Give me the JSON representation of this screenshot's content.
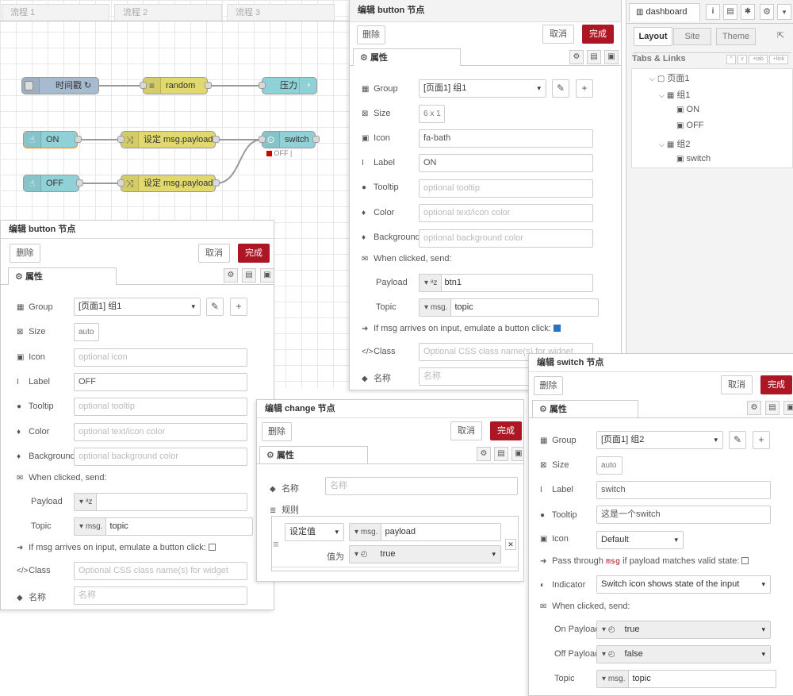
{
  "flow_tabs": [
    "流程 1",
    "流程 2",
    "流程 3"
  ],
  "nodes": {
    "inject": "时间戳 ↻",
    "random": "random",
    "gauge": "压力",
    "on": "ON",
    "off": "OFF",
    "change1": "设定 msg.payload",
    "change2": "设定 msg.payload",
    "switch": "switch",
    "switch_status": "OFF |"
  },
  "colors": {
    "primary": "#ad1625",
    "dashboard_node": "#8fd1d6",
    "function_node": "#e2d96e",
    "change_node": "#e2d96e"
  },
  "common": {
    "delete": "删除",
    "cancel": "取消",
    "done": "完成",
    "properties": "属性"
  },
  "btn_on_editor": {
    "title": "编辑 button 节点",
    "group_label": "Group",
    "group": "[页面1] 组1",
    "size_label": "Size",
    "size": "6 x 1",
    "icon_label": "Icon",
    "icon": "fa-bath",
    "label_label": "Label",
    "label": "ON",
    "tooltip_label": "Tooltip",
    "tooltip_ph": "optional tooltip",
    "color_label": "Color",
    "color_ph": "optional text/icon color",
    "bg_label": "Background",
    "bg_ph": "optional background color",
    "clicked_label": "When clicked, send:",
    "payload_label": "Payload",
    "payload_type": "ᵃz",
    "payload": "btn1",
    "topic_label": "Topic",
    "topic_type": "msg.",
    "topic": "topic",
    "emulate_label": "If msg arrives on input, emulate a button click:",
    "class_label": "Class",
    "class_ph": "Optional CSS class name(s) for widget",
    "name_label": "名称",
    "name_ph": "名称"
  },
  "btn_off_editor": {
    "title": "编辑 button 节点",
    "group_label": "Group",
    "group": "[页面1] 组1",
    "size_label": "Size",
    "size": "auto",
    "icon_label": "Icon",
    "icon_ph": "optional icon",
    "label_label": "Label",
    "label": "OFF",
    "tooltip_label": "Tooltip",
    "tooltip_ph": "optional tooltip",
    "color_label": "Color",
    "color_ph": "optional text/icon color",
    "bg_label": "Background",
    "bg_ph": "optional background color",
    "clicked_label": "When clicked, send:",
    "payload_label": "Payload",
    "payload_type": "ᵃz",
    "payload": "",
    "topic_label": "Topic",
    "topic_type": "msg.",
    "topic": "topic",
    "emulate_label": "If msg arrives on input, emulate a button click:",
    "class_label": "Class",
    "class_ph": "Optional CSS class name(s) for widget",
    "name_label": "名称",
    "name_ph": "名称"
  },
  "change_editor": {
    "title": "编辑 change 节点",
    "name_label": "名称",
    "name_ph": "名称",
    "rules_label": "规则",
    "action": "设定值",
    "target_type": "msg.",
    "target": "payload",
    "to_label": "值为",
    "to_type": "◴",
    "to_value": "true"
  },
  "switch_editor": {
    "title": "编辑 switch 节点",
    "group_label": "Group",
    "group": "[页面1] 组2",
    "size_label": "Size",
    "size": "auto",
    "label_label": "Label",
    "label": "switch",
    "tooltip_label": "Tooltip",
    "tooltip": "这是一个switch",
    "icon_label": "Icon",
    "icon": "Default",
    "pass_label_a": "Pass through",
    "pass_msg": "msg",
    "pass_label_b": "if payload matches valid state:",
    "indicator_label": "Indicator",
    "indicator": "Switch icon shows state of the input",
    "clicked_label": "When clicked, send:",
    "on_label": "On Payload",
    "on_type": "◴",
    "on": "true",
    "off_label": "Off Payload",
    "off_type": "◴",
    "off": "false",
    "topic_label": "Topic",
    "topic_type": "msg.",
    "topic": "topic"
  },
  "sidebar": {
    "title": "dashboard",
    "tabs": [
      "Layout",
      "Site",
      "Theme"
    ],
    "section": "Tabs & Links",
    "mini_buttons": [
      "^",
      "v",
      "+tab",
      "+link"
    ],
    "tree": [
      {
        "label": "页面1"
      },
      {
        "label": "组1"
      },
      {
        "label": "ON"
      },
      {
        "label": "OFF"
      },
      {
        "label": "组2"
      },
      {
        "label": "switch"
      }
    ]
  }
}
